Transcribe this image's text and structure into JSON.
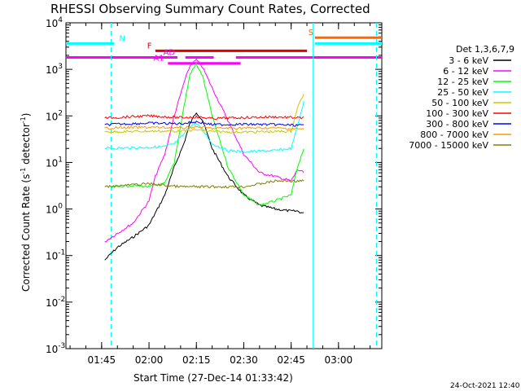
{
  "chart_data": {
    "type": "line",
    "title": "RHESSI Observing Summary Count Rates, Corrected",
    "xlabel": "Start Time (27-Dec-14 01:33:42)",
    "ylabel": "Corrected Count Rate (s⁻¹ detector⁻¹)",
    "ylabel_main": "Corrected Count Rate (s",
    "ylabel_exp1": "-1",
    "ylabel_mid": " detector",
    "ylabel_exp2": "-1",
    "ylabel_end": ")",
    "yscale": "log",
    "ylim": [
      0.001,
      10000
    ],
    "xlim": [
      "01:33:42",
      "03:13:42"
    ],
    "x_ticks": [
      "01:45",
      "02:00",
      "02:15",
      "02:30",
      "02:45",
      "03:00"
    ],
    "y_ticks": [
      {
        "value": 0.001,
        "base": "10",
        "exp": "-3"
      },
      {
        "value": 0.01,
        "base": "10",
        "exp": "-2"
      },
      {
        "value": 0.1,
        "base": "10",
        "exp": "-1"
      },
      {
        "value": 1,
        "base": "10",
        "exp": "0"
      },
      {
        "value": 10,
        "base": "10",
        "exp": "1"
      },
      {
        "value": 100,
        "base": "10",
        "exp": "2"
      },
      {
        "value": 1000,
        "base": "10",
        "exp": "3"
      },
      {
        "value": 10000,
        "base": "10",
        "exp": "4"
      }
    ],
    "legend_title": "Det 1,3,6,7,9",
    "legend_position": "right",
    "series": [
      {
        "name": "3 - 6 keV",
        "color": "#000000",
        "x": [
          "01:46",
          "01:50",
          "01:55",
          "02:00",
          "02:05",
          "02:08",
          "02:11",
          "02:13",
          "02:15",
          "02:17",
          "02:20",
          "02:25",
          "02:30",
          "02:35",
          "02:40",
          "02:45",
          "02:47",
          "02:49"
        ],
        "y": [
          0.08,
          0.15,
          0.25,
          0.45,
          2,
          8,
          25,
          70,
          120,
          80,
          20,
          5,
          2,
          1.2,
          1.0,
          0.9,
          0.9,
          0.8
        ]
      },
      {
        "name": "6 - 12 keV",
        "color": "#ff00ff",
        "x": [
          "01:46",
          "01:50",
          "01:55",
          "02:00",
          "02:02",
          "02:05",
          "02:08",
          "02:11",
          "02:13",
          "02:15",
          "02:17",
          "02:20",
          "02:25",
          "02:30",
          "02:35",
          "02:40",
          "02:45",
          "02:47",
          "02:49"
        ],
        "y": [
          0.2,
          0.3,
          0.5,
          1.5,
          5,
          15,
          100,
          500,
          1200,
          1600,
          1100,
          400,
          80,
          15,
          6,
          5,
          4,
          7,
          6
        ]
      },
      {
        "name": "12 - 25 keV",
        "color": "#00ff00",
        "x": [
          "01:48",
          "01:55",
          "02:00",
          "02:05",
          "02:08",
          "02:11",
          "02:13",
          "02:15",
          "02:17",
          "02:20",
          "02:25",
          "02:30",
          "02:35",
          "02:40",
          "02:45",
          "02:47",
          "02:49"
        ],
        "y": [
          3,
          3.2,
          3,
          3.5,
          10,
          150,
          800,
          1300,
          700,
          100,
          8,
          2,
          1.2,
          1.5,
          2,
          8,
          20
        ]
      },
      {
        "name": "25 - 50 keV",
        "color": "#00ffff",
        "x": [
          "01:46",
          "02:00",
          "02:05",
          "02:08",
          "02:11",
          "02:13",
          "02:15",
          "02:17",
          "02:20",
          "02:25",
          "02:30",
          "02:40",
          "02:45",
          "02:47",
          "02:49"
        ],
        "y": [
          20,
          21,
          22,
          25,
          40,
          60,
          70,
          50,
          25,
          18,
          17,
          18,
          20,
          60,
          200
        ]
      },
      {
        "name": "50 - 100 keV",
        "color": "#c8c800",
        "x": [
          "01:46",
          "02:00",
          "02:10",
          "02:15",
          "02:20",
          "02:30",
          "02:40",
          "02:45",
          "02:47",
          "02:49"
        ],
        "y": [
          45,
          47,
          47,
          50,
          46,
          45,
          46,
          47,
          150,
          300
        ]
      },
      {
        "name": "100 - 300 keV",
        "color": "#ff0000",
        "x": [
          "01:46",
          "02:00",
          "02:10",
          "02:15",
          "02:20",
          "02:30",
          "02:40",
          "02:49"
        ],
        "y": [
          90,
          100,
          92,
          95,
          88,
          92,
          95,
          90
        ]
      },
      {
        "name": "300 - 800 keV",
        "color": "#0000ff",
        "x": [
          "01:46",
          "02:00",
          "02:10",
          "02:15",
          "02:20",
          "02:30",
          "02:40",
          "02:49"
        ],
        "y": [
          65,
          70,
          68,
          75,
          65,
          66,
          65,
          62
        ]
      },
      {
        "name": "800 - 7000 keV",
        "color": "#ff9900",
        "x": [
          "01:46",
          "02:00",
          "02:10",
          "02:15",
          "02:20",
          "02:30",
          "02:40",
          "02:49"
        ],
        "y": [
          55,
          57,
          55,
          58,
          54,
          55,
          55,
          52
        ]
      },
      {
        "name": "7000 - 15000 keV",
        "color": "#808000",
        "x": [
          "01:46",
          "02:00",
          "02:10",
          "02:15",
          "02:20",
          "02:30",
          "02:40",
          "02:49"
        ],
        "y": [
          3,
          3.5,
          3,
          3,
          3,
          3,
          4,
          4
        ]
      }
    ],
    "flag_bars": [
      {
        "label": "N",
        "color": "#00ffff",
        "segments": [
          [
            "01:33:42",
            "01:49:00"
          ],
          [
            "02:52:30",
            "03:13:42"
          ]
        ],
        "level": 3600
      },
      {
        "label": "S",
        "color": "#ff6600",
        "segments": [
          [
            "02:52:30",
            "03:13:42"
          ]
        ],
        "level": 4800
      },
      {
        "label": "F",
        "color": "#e00000",
        "segments": [
          [
            "02:02:00",
            "02:50:00"
          ]
        ],
        "level": 2500
      },
      {
        "label": "AD",
        "color": "#ff00ff",
        "segments": [
          [
            "01:33:42",
            "02:09:00"
          ],
          [
            "02:11:30",
            "02:20:30"
          ],
          [
            "02:27:30",
            "03:13:42"
          ]
        ],
        "level": 1800
      },
      {
        "label": "A1",
        "color": "#ff00ff",
        "segments": [
          [
            "02:06:00",
            "02:29:00"
          ]
        ],
        "level": 1350
      }
    ],
    "vertical_lines": [
      {
        "x": "01:48:00",
        "color": "#00ffff",
        "style": "dashed"
      },
      {
        "x": "02:52:00",
        "color": "#00ffff",
        "style": "solid"
      },
      {
        "x": "03:12:00",
        "color": "#00ffff",
        "style": "dashed"
      }
    ],
    "footer_date": "24-Oct-2021 12:40"
  }
}
